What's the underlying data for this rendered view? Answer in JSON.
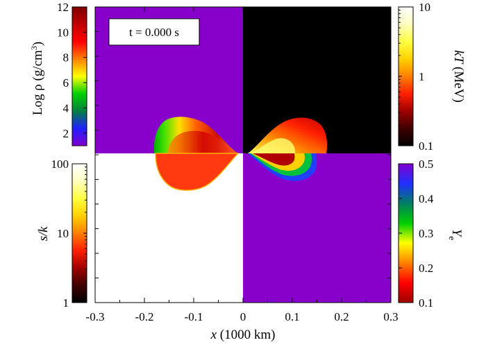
{
  "chart_data": {
    "type": "heatmap",
    "time_label": "t = 0.000 s",
    "x_axis": {
      "label_var": "x",
      "label_unit": " (1000 km)",
      "range": [
        -0.3,
        0.3
      ],
      "ticks": [
        -0.3,
        -0.2,
        -0.1,
        0,
        0.1,
        0.2,
        0.3
      ],
      "tick_labels": [
        "-0.3",
        "-0.2",
        "-0.1",
        "0",
        "0.1",
        "0.2",
        "0.3"
      ]
    },
    "panels": [
      {
        "id": "density",
        "quadrant": "top-left",
        "quantity": "Log ρ (g/cm³)",
        "label_main": "Log ρ (g/cm",
        "label_sup": "3",
        "label_end": ")",
        "scale": "linear",
        "range": [
          1,
          12
        ],
        "ticks": [
          2,
          4,
          6,
          8,
          10,
          12
        ],
        "tick_labels": [
          "2",
          "4",
          "6",
          "8",
          "10",
          "12"
        ],
        "colormap": [
          "#8000d0",
          "#2020ff",
          "#008040",
          "#00d000",
          "#ffff00",
          "#ff8000",
          "#ff0000",
          "#c00000",
          "#800000"
        ],
        "background_color": "#8800cc"
      },
      {
        "id": "temperature",
        "quadrant": "top-right",
        "quantity": "kT (MeV)",
        "label_var": "kT",
        "label_unit": " (MeV)",
        "scale": "log",
        "range": [
          0.1,
          10
        ],
        "ticks": [
          0.1,
          1,
          10
        ],
        "tick_labels": [
          "0.1",
          "1",
          "10"
        ],
        "colormap": [
          "#000000",
          "#400000",
          "#a00000",
          "#ff2000",
          "#ff8000",
          "#ffd000",
          "#ffff40",
          "#ffffc0",
          "#ffffff"
        ],
        "background_color": "#000000"
      },
      {
        "id": "entropy",
        "quadrant": "bottom-left",
        "quantity": "s/k",
        "label_var": "s/k",
        "scale": "log",
        "range": [
          1,
          100
        ],
        "ticks": [
          1,
          10,
          100
        ],
        "tick_labels": [
          "1",
          "10",
          "100"
        ],
        "colormap": [
          "#000000",
          "#400000",
          "#a00000",
          "#ff2000",
          "#ff8000",
          "#ffd000",
          "#ffff40",
          "#ffffc0",
          "#ffffff"
        ],
        "background_color": "#ffffff"
      },
      {
        "id": "electron_fraction",
        "quadrant": "bottom-right",
        "quantity": "Ye",
        "label_var": "Y",
        "label_sub": "e",
        "scale": "linear",
        "range": [
          0.1,
          0.5
        ],
        "ticks": [
          0.1,
          0.2,
          0.3,
          0.4,
          0.5
        ],
        "tick_labels": [
          "0.1",
          "0.2",
          "0.3",
          "0.4",
          "0.5"
        ],
        "colormap": [
          "#a00000",
          "#ff0000",
          "#ff8000",
          "#ffff00",
          "#00d000",
          "#008060",
          "#2030ff",
          "#8000d0"
        ],
        "background_color": "#8800cc"
      }
    ],
    "grid": false
  }
}
